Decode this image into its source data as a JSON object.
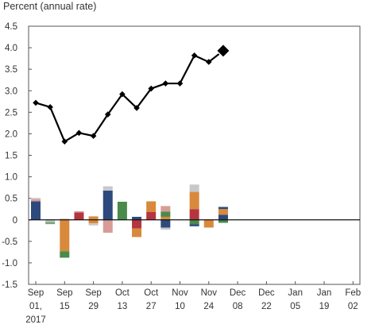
{
  "chart_data": {
    "type": "bar",
    "ylabel": "Percent (annual rate)",
    "ylim": [
      -1.5,
      4.5
    ],
    "yticks": [
      "4.5",
      "4.0",
      "3.5",
      "3.0",
      "2.5",
      "2.0",
      "1.5",
      "1.0",
      "0.5",
      "0",
      "-0.5",
      "-1.0",
      "-1.5"
    ],
    "xtick_labels": [
      [
        "Sep",
        "01,",
        "2017"
      ],
      [
        "Sep",
        "15"
      ],
      [
        "Sep",
        "29"
      ],
      [
        "Oct",
        "13"
      ],
      [
        "Oct",
        "27"
      ],
      [
        "Nov",
        "10"
      ],
      [
        "Nov",
        "24"
      ],
      [
        "Dec",
        "08"
      ],
      [
        "Dec",
        "22"
      ],
      [
        "Jan",
        "05"
      ],
      [
        "Jan",
        "19"
      ],
      [
        "Feb",
        "02"
      ]
    ],
    "line_series": {
      "values": [
        2.72,
        2.62,
        1.82,
        2.02,
        1.95,
        2.45,
        2.92,
        2.6,
        3.05,
        3.17,
        3.17,
        3.82,
        3.67,
        3.93
      ],
      "latest_marker": "large-diamond",
      "color": "#000000"
    },
    "bars": [
      [
        {
          "value": 0.43,
          "color": "#2e4a7d"
        },
        {
          "value": 0.05,
          "color": "#d89c96"
        },
        {
          "value": 0.03,
          "color": "#c8c8cc"
        }
      ],
      [
        {
          "value": -0.05,
          "color": "#c8c8cc"
        },
        {
          "value": -0.05,
          "color": "#7aa47a"
        }
      ],
      [
        {
          "value": 0.03,
          "color": "#c8c8cc"
        },
        {
          "value": -0.73,
          "color": "#d9893b"
        },
        {
          "value": -0.15,
          "color": "#4a8a4a"
        }
      ],
      [
        {
          "value": 0.17,
          "color": "#b5353f"
        },
        {
          "value": 0.03,
          "color": "#d89c96"
        }
      ],
      [
        {
          "value": 0.08,
          "color": "#d9893b"
        },
        {
          "value": -0.08,
          "color": "#d9893b"
        },
        {
          "value": -0.05,
          "color": "#c8c8cc"
        }
      ],
      [
        {
          "value": 0.68,
          "color": "#2e4a7d"
        },
        {
          "value": 0.1,
          "color": "#c8c8cc"
        },
        {
          "value": -0.3,
          "color": "#d89c96"
        }
      ],
      [
        {
          "value": 0.42,
          "color": "#4a8a4a"
        }
      ],
      [
        {
          "value": 0.07,
          "color": "#2e4a7d"
        },
        {
          "value": -0.2,
          "color": "#b5353f"
        },
        {
          "value": -0.2,
          "color": "#d9893b"
        }
      ],
      [
        {
          "value": 0.18,
          "color": "#b5353f"
        },
        {
          "value": 0.25,
          "color": "#d9893b"
        }
      ],
      [
        {
          "value": 0.07,
          "color": "#d9893b"
        },
        {
          "value": 0.12,
          "color": "#4a8a4a"
        },
        {
          "value": 0.13,
          "color": "#d89c96"
        },
        {
          "value": -0.18,
          "color": "#2e4a7d"
        },
        {
          "value": -0.05,
          "color": "#c8c8cc"
        }
      ],
      [],
      [
        {
          "value": 0.25,
          "color": "#b5353f"
        },
        {
          "value": 0.4,
          "color": "#d9893b"
        },
        {
          "value": 0.17,
          "color": "#c8c8cc"
        },
        {
          "value": -0.1,
          "color": "#4a8a4a"
        },
        {
          "value": -0.05,
          "color": "#2e4a7d"
        }
      ],
      [
        {
          "value": -0.18,
          "color": "#d9893b"
        }
      ],
      [
        {
          "value": 0.12,
          "color": "#2e4a7d"
        },
        {
          "value": 0.13,
          "color": "#d9893b"
        },
        {
          "value": 0.05,
          "color": "#2e4a7d"
        },
        {
          "value": -0.07,
          "color": "#4a8a4a"
        }
      ]
    ],
    "grid": false,
    "legend": "none"
  }
}
